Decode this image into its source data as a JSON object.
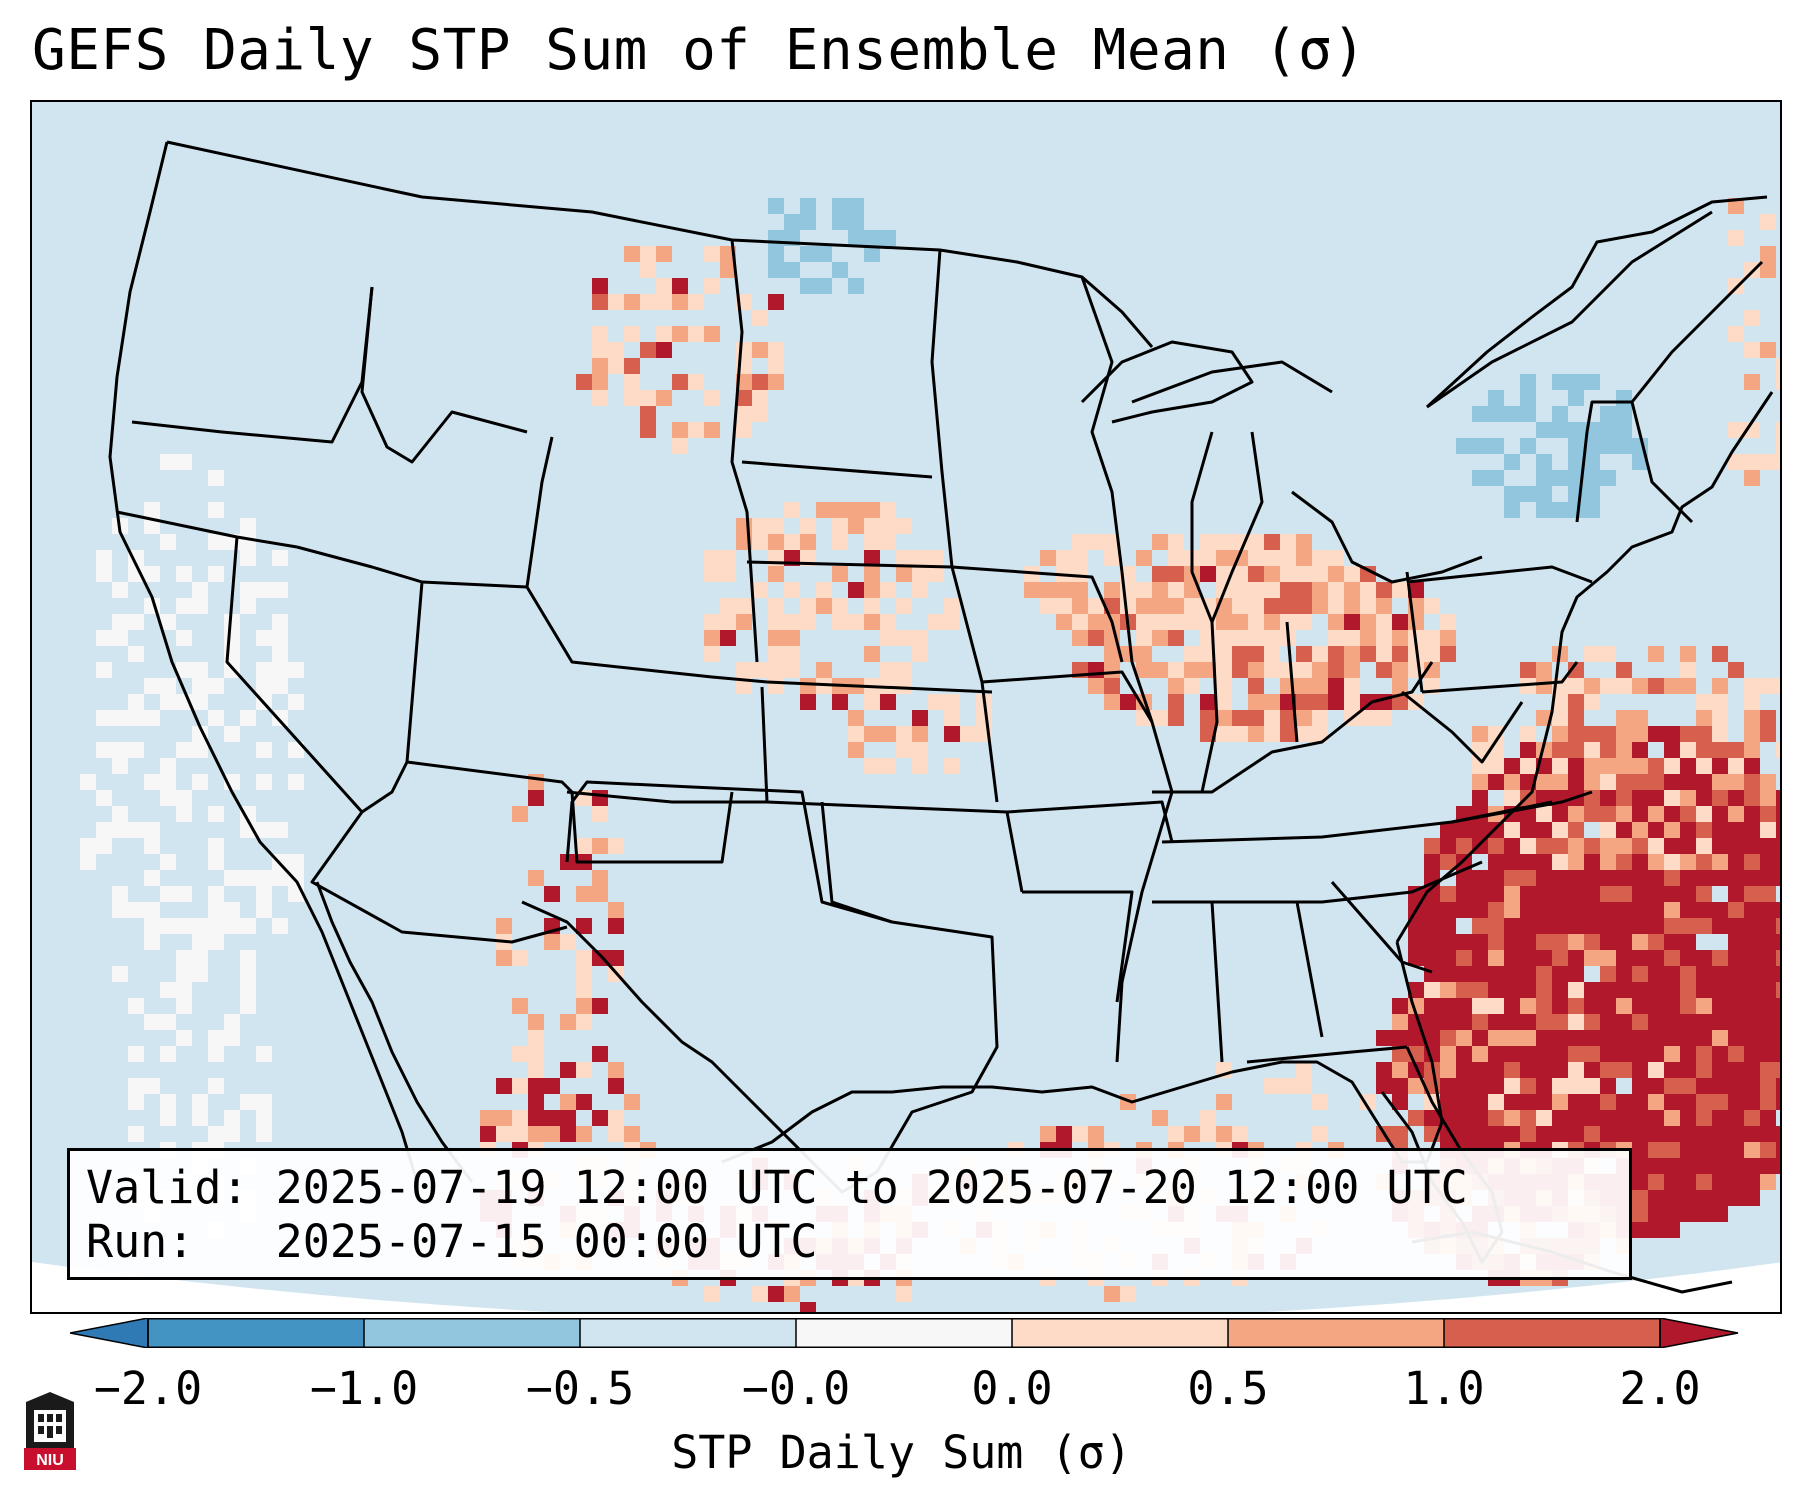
{
  "title": "GEFS Daily STP Sum of Ensemble Mean (σ)",
  "info": {
    "valid_label": "Valid:",
    "valid_value": "2025-07-19 12:00 UTC to 2025-07-20 12:00 UTC",
    "run_label": "Run:",
    "run_value": "2025-07-15 00:00 UTC"
  },
  "colorbar": {
    "label": "STP Daily Sum (σ)",
    "tick_labels": [
      "−2.0",
      "−1.0",
      "−0.5",
      "−0.0",
      "0.0",
      "0.5",
      "1.0",
      "2.0"
    ],
    "bins": [
      {
        "name": "below -2.0",
        "color": "#2f79b5"
      },
      {
        "name": "-2.0 to -1.0",
        "color": "#4393c3"
      },
      {
        "name": "-1.0 to -0.5",
        "color": "#92c5de"
      },
      {
        "name": "-0.5 to -0.0",
        "color": "#d1e5f0"
      },
      {
        "name": "-0.0 to 0.0",
        "color": "#f7f7f7"
      },
      {
        "name": "0.0 to 0.5",
        "color": "#fddbc7"
      },
      {
        "name": "0.5 to 1.0",
        "color": "#f4a582"
      },
      {
        "name": "1.0 to 2.0",
        "color": "#d6604d"
      },
      {
        "name": "above 2.0",
        "color": "#b2182b"
      }
    ]
  },
  "regions": [
    {
      "name": "Southeast US coast / Western Atlantic",
      "category": "above 2.0"
    },
    {
      "name": "Ohio Valley / Great Lakes",
      "category": "0.5 to 1.0"
    },
    {
      "name": "Northern Plains / Montana",
      "category": "0.0 to 0.5"
    },
    {
      "name": "New York / New England",
      "category": "-1.0 to -0.5"
    },
    {
      "name": "West Coast offshore",
      "category": "-0.0 to 0.0"
    }
  ],
  "logo": {
    "text": "NIU"
  }
}
